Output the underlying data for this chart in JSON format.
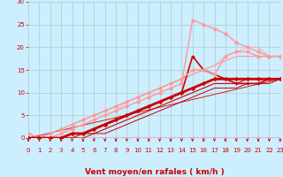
{
  "xlabel": "Vent moyen/en rafales ( km/h )",
  "bg_color": "#cceeff",
  "grid_color": "#aacccc",
  "axis_color": "#cc0000",
  "xlim": [
    -0.5,
    23.5
  ],
  "ylim": [
    -1,
    30
  ],
  "xticks": [
    0,
    1,
    2,
    3,
    4,
    5,
    6,
    7,
    8,
    9,
    10,
    11,
    12,
    13,
    14,
    15,
    16,
    17,
    18,
    19,
    20,
    21,
    22,
    23
  ],
  "yticks": [
    0,
    5,
    10,
    15,
    20,
    25,
    30
  ],
  "lines": [
    {
      "x": [
        0,
        1,
        2,
        3,
        4,
        5,
        6,
        7,
        8,
        9,
        10,
        11,
        12,
        13,
        14,
        15,
        16,
        17,
        18,
        19,
        20,
        21,
        22,
        23
      ],
      "y": [
        0,
        0,
        0,
        0,
        1,
        1,
        2,
        3,
        4,
        5,
        6,
        7,
        8,
        9,
        10,
        11,
        12,
        13,
        13,
        13,
        13,
        13,
        13,
        13
      ],
      "color": "#cc0000",
      "lw": 2.0,
      "marker": "D",
      "ms": 2.5,
      "zorder": 5
    },
    {
      "x": [
        0,
        1,
        2,
        3,
        4,
        5,
        6,
        7,
        8,
        9,
        10,
        11,
        12,
        13,
        14,
        15,
        16,
        17,
        18,
        19,
        20,
        21,
        22,
        23
      ],
      "y": [
        0,
        0,
        0,
        0,
        1,
        1,
        2,
        3,
        4,
        5,
        6,
        7,
        8,
        9,
        10,
        18,
        15,
        14,
        13,
        12,
        12,
        12,
        13,
        13
      ],
      "color": "#cc0000",
      "lw": 1.2,
      "marker": "D",
      "ms": 2.0,
      "zorder": 4
    },
    {
      "x": [
        0,
        1,
        2,
        3,
        4,
        5,
        6,
        7,
        8,
        9,
        10,
        11,
        12,
        13,
        14,
        15,
        16,
        17,
        18,
        19,
        20,
        21,
        22,
        23
      ],
      "y": [
        0,
        0,
        0,
        0,
        0,
        1,
        1,
        2,
        3,
        4,
        5,
        6,
        7,
        8,
        9,
        10,
        11,
        12,
        12,
        12,
        13,
        13,
        13,
        13
      ],
      "color": "#cc0000",
      "lw": 0.8,
      "marker": null,
      "ms": 0,
      "zorder": 3
    },
    {
      "x": [
        0,
        1,
        2,
        3,
        4,
        5,
        6,
        7,
        8,
        9,
        10,
        11,
        12,
        13,
        14,
        15,
        16,
        17,
        18,
        19,
        20,
        21,
        22,
        23
      ],
      "y": [
        0,
        0,
        0,
        0,
        0,
        0,
        1,
        1,
        2,
        3,
        4,
        5,
        6,
        7,
        8,
        9,
        10,
        11,
        11,
        11,
        12,
        12,
        12,
        13
      ],
      "color": "#cc0000",
      "lw": 0.7,
      "marker": null,
      "ms": 0,
      "zorder": 3
    },
    {
      "x": [
        0,
        23
      ],
      "y": [
        0,
        13
      ],
      "color": "#cc0000",
      "lw": 0.6,
      "marker": null,
      "ms": 0,
      "zorder": 2
    },
    {
      "x": [
        0,
        1,
        2,
        3,
        4,
        5,
        6,
        7,
        8,
        9,
        10,
        11,
        12,
        13,
        14,
        15,
        16,
        17,
        18,
        19,
        20,
        21,
        22,
        23
      ],
      "y": [
        1,
        0,
        0,
        1,
        2,
        3,
        4,
        5,
        6,
        7,
        8,
        9,
        10,
        11,
        12,
        26,
        25,
        24,
        23,
        21,
        20,
        19,
        18,
        18
      ],
      "color": "#ff9999",
      "lw": 1.0,
      "marker": "D",
      "ms": 2.5,
      "zorder": 4
    },
    {
      "x": [
        0,
        1,
        2,
        3,
        4,
        5,
        6,
        7,
        8,
        9,
        10,
        11,
        12,
        13,
        14,
        15,
        16,
        17,
        18,
        19,
        20,
        21,
        22,
        23
      ],
      "y": [
        1,
        0,
        1,
        2,
        3,
        4,
        5,
        6,
        7,
        8,
        9,
        10,
        11,
        12,
        13,
        15,
        15,
        14,
        18,
        19,
        19,
        18,
        18,
        18
      ],
      "color": "#ff9999",
      "lw": 1.0,
      "marker": "D",
      "ms": 2.5,
      "zorder": 4
    },
    {
      "x": [
        0,
        1,
        2,
        3,
        4,
        5,
        6,
        7,
        8,
        9,
        10,
        11,
        12,
        13,
        14,
        15,
        16,
        17,
        18,
        19,
        20,
        21,
        22,
        23
      ],
      "y": [
        0,
        0,
        1,
        2,
        3,
        4,
        5,
        6,
        7,
        8,
        9,
        10,
        11,
        12,
        13,
        14,
        15,
        16,
        17,
        18,
        18,
        18,
        18,
        18
      ],
      "color": "#ff9999",
      "lw": 0.8,
      "marker": null,
      "ms": 0,
      "zorder": 3
    },
    {
      "x": [
        0,
        1,
        2,
        3,
        4,
        5,
        6,
        7,
        8,
        9,
        10,
        11,
        12,
        13,
        14,
        15,
        16,
        17,
        18,
        19,
        20,
        21,
        22,
        23
      ],
      "y": [
        0,
        0,
        0,
        1,
        2,
        3,
        4,
        5,
        6,
        8,
        9,
        10,
        11,
        12,
        13,
        14,
        15,
        16,
        18,
        19,
        20,
        20,
        18,
        18
      ],
      "color": "#ffaaaa",
      "lw": 0.7,
      "marker": null,
      "ms": 0,
      "zorder": 2
    }
  ],
  "xlabel_color": "#cc0000",
  "xlabel_fontsize": 6.5,
  "tick_fontsize": 5.0,
  "tick_color": "#cc0000"
}
